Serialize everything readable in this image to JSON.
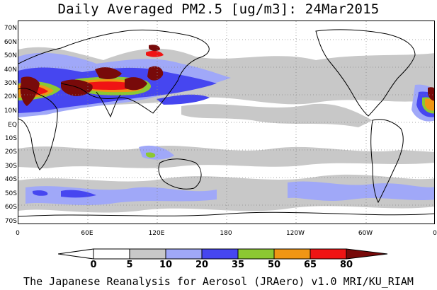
{
  "title": "Daily Averaged PM2.5 [ug/m3]: 24Mar2015",
  "footer": "The Japanese Reanalysis for Aerosol (JRAero) v1.0 MRI/KU_RIAM",
  "lat_labels": [
    "70N",
    "60N",
    "50N",
    "40N",
    "30N",
    "20N",
    "10N",
    "EQ",
    "10S",
    "20S",
    "30S",
    "40S",
    "50S",
    "60S",
    "70S"
  ],
  "lon_labels": [
    "0",
    "60E",
    "120E",
    "180",
    "120W",
    "60W",
    "0"
  ],
  "colorbar": {
    "labels": [
      "0",
      "5",
      "10",
      "20",
      "35",
      "50",
      "65",
      "80"
    ],
    "colors": [
      "#ffffff",
      "#c8c8c8",
      "#a0a8f8",
      "#4646f0",
      "#8cc832",
      "#f09614",
      "#f01414",
      "#780a0a"
    ]
  },
  "map": {
    "extent": {
      "lon": [
        0,
        360
      ],
      "lat": [
        -75,
        75
      ]
    },
    "graticule": "dotted, 30° spacing",
    "land_outline": "black coastlines",
    "description_free": true
  }
}
